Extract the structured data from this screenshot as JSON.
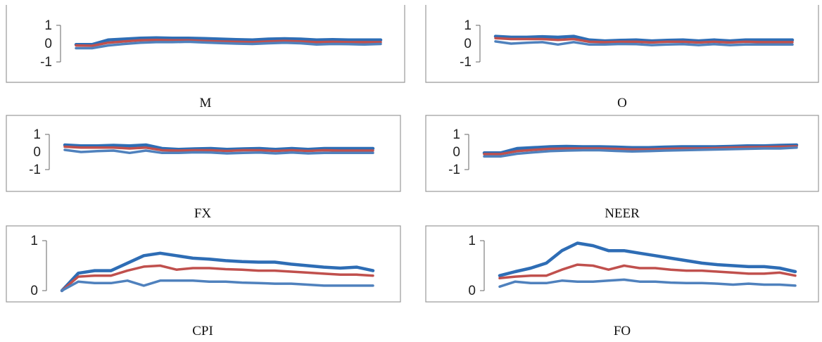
{
  "colors": {
    "upper": "#2e6db5",
    "median": "#c0504d",
    "lower": "#4f81bd",
    "frame": "#999999"
  },
  "chart_data": [
    {
      "type": "line",
      "caption": "M",
      "yticks": [
        "1",
        "0",
        "-1"
      ],
      "ylim": [
        -1,
        1
      ],
      "x": [
        1,
        2,
        3,
        4,
        5,
        6,
        7,
        8,
        9,
        10,
        11,
        12,
        13,
        14,
        15,
        16,
        17,
        18,
        19,
        20
      ],
      "series": [
        {
          "role": "upper",
          "values": [
            -0.05,
            -0.05,
            0.2,
            0.25,
            0.3,
            0.32,
            0.3,
            0.3,
            0.28,
            0.25,
            0.22,
            0.2,
            0.25,
            0.27,
            0.25,
            0.2,
            0.22,
            0.2,
            0.2,
            0.2
          ]
        },
        {
          "role": "median",
          "values": [
            -0.1,
            -0.12,
            0.05,
            0.12,
            0.18,
            0.2,
            0.18,
            0.18,
            0.15,
            0.12,
            0.1,
            0.08,
            0.12,
            0.15,
            0.12,
            0.08,
            0.1,
            0.08,
            0.08,
            0.08
          ]
        },
        {
          "role": "lower",
          "values": [
            -0.25,
            -0.25,
            -0.1,
            -0.02,
            0.05,
            0.08,
            0.08,
            0.1,
            0.06,
            0.03,
            0.0,
            -0.02,
            0.02,
            0.05,
            0.02,
            -0.05,
            -0.02,
            -0.03,
            -0.05,
            -0.02
          ]
        }
      ]
    },
    {
      "type": "line",
      "caption": "O",
      "yticks": [
        "1",
        "0",
        "-1"
      ],
      "ylim": [
        -1,
        1
      ],
      "x": [
        1,
        2,
        3,
        4,
        5,
        6,
        7,
        8,
        9,
        10,
        11,
        12,
        13,
        14,
        15,
        16,
        17,
        18,
        19,
        20
      ],
      "series": [
        {
          "role": "upper",
          "values": [
            0.4,
            0.35,
            0.35,
            0.38,
            0.35,
            0.4,
            0.2,
            0.15,
            0.18,
            0.2,
            0.15,
            0.18,
            0.2,
            0.15,
            0.2,
            0.15,
            0.2,
            0.2,
            0.2,
            0.2
          ]
        },
        {
          "role": "median",
          "values": [
            0.3,
            0.25,
            0.25,
            0.25,
            0.2,
            0.25,
            0.1,
            0.08,
            0.1,
            0.1,
            0.06,
            0.1,
            0.1,
            0.06,
            0.1,
            0.06,
            0.1,
            0.08,
            0.08,
            0.08
          ]
        },
        {
          "role": "lower",
          "values": [
            0.12,
            0.0,
            0.05,
            0.08,
            -0.05,
            0.08,
            -0.05,
            -0.05,
            -0.02,
            -0.03,
            -0.08,
            -0.05,
            -0.03,
            -0.08,
            -0.03,
            -0.08,
            -0.05,
            -0.05,
            -0.05,
            -0.05
          ]
        }
      ]
    },
    {
      "type": "line",
      "caption": "FX",
      "yticks": [
        "1",
        "0",
        "-1"
      ],
      "ylim": [
        -1,
        1
      ],
      "x": [
        1,
        2,
        3,
        4,
        5,
        6,
        7,
        8,
        9,
        10,
        11,
        12,
        13,
        14,
        15,
        16,
        17,
        18,
        19,
        20
      ],
      "series": [
        {
          "role": "upper",
          "values": [
            0.4,
            0.35,
            0.35,
            0.38,
            0.35,
            0.4,
            0.2,
            0.15,
            0.18,
            0.2,
            0.15,
            0.18,
            0.2,
            0.15,
            0.2,
            0.15,
            0.2,
            0.2,
            0.2,
            0.2
          ]
        },
        {
          "role": "median",
          "values": [
            0.3,
            0.25,
            0.25,
            0.25,
            0.2,
            0.25,
            0.1,
            0.08,
            0.1,
            0.1,
            0.06,
            0.1,
            0.1,
            0.06,
            0.1,
            0.06,
            0.1,
            0.08,
            0.08,
            0.08
          ]
        },
        {
          "role": "lower",
          "values": [
            0.12,
            0.0,
            0.05,
            0.08,
            -0.05,
            0.08,
            -0.05,
            -0.05,
            -0.02,
            -0.03,
            -0.08,
            -0.05,
            -0.03,
            -0.08,
            -0.03,
            -0.08,
            -0.05,
            -0.05,
            -0.05,
            -0.05
          ]
        }
      ]
    },
    {
      "type": "line",
      "caption": "NEER",
      "yticks": [
        "1",
        "0",
        "-1"
      ],
      "ylim": [
        -1,
        1
      ],
      "x": [
        1,
        2,
        3,
        4,
        5,
        6,
        7,
        8,
        9,
        10,
        11,
        12,
        13,
        14,
        15,
        16,
        17,
        18,
        19,
        20
      ],
      "series": [
        {
          "role": "upper",
          "values": [
            -0.05,
            -0.05,
            0.2,
            0.25,
            0.3,
            0.32,
            0.3,
            0.3,
            0.28,
            0.25,
            0.25,
            0.28,
            0.3,
            0.3,
            0.3,
            0.32,
            0.35,
            0.35,
            0.38,
            0.4
          ]
        },
        {
          "role": "median",
          "values": [
            -0.12,
            -0.12,
            0.05,
            0.12,
            0.18,
            0.2,
            0.2,
            0.2,
            0.18,
            0.15,
            0.15,
            0.18,
            0.2,
            0.2,
            0.22,
            0.25,
            0.27,
            0.28,
            0.3,
            0.32
          ]
        },
        {
          "role": "lower",
          "values": [
            -0.25,
            -0.25,
            -0.1,
            -0.02,
            0.05,
            0.08,
            0.1,
            0.1,
            0.06,
            0.03,
            0.05,
            0.08,
            0.1,
            0.12,
            0.14,
            0.16,
            0.18,
            0.2,
            0.2,
            0.25
          ]
        }
      ]
    },
    {
      "type": "line",
      "caption": "CPI",
      "yticks": [
        "1",
        "0"
      ],
      "ylim": [
        0,
        1
      ],
      "x": [
        1,
        2,
        3,
        4,
        5,
        6,
        7,
        8,
        9,
        10,
        11,
        12,
        13,
        14,
        15,
        16,
        17,
        18,
        19,
        20
      ],
      "series": [
        {
          "role": "upper",
          "values": [
            0.0,
            0.35,
            0.4,
            0.4,
            0.55,
            0.7,
            0.75,
            0.7,
            0.65,
            0.63,
            0.6,
            0.58,
            0.57,
            0.57,
            0.53,
            0.5,
            0.47,
            0.45,
            0.47,
            0.4
          ]
        },
        {
          "role": "median",
          "values": [
            0.0,
            0.28,
            0.3,
            0.3,
            0.4,
            0.48,
            0.5,
            0.42,
            0.45,
            0.45,
            0.43,
            0.42,
            0.4,
            0.4,
            0.38,
            0.36,
            0.34,
            0.32,
            0.32,
            0.3
          ]
        },
        {
          "role": "lower",
          "values": [
            0.0,
            0.18,
            0.15,
            0.15,
            0.2,
            0.1,
            0.2,
            0.2,
            0.2,
            0.18,
            0.18,
            0.16,
            0.15,
            0.14,
            0.14,
            0.12,
            0.1,
            0.1,
            0.1,
            0.1
          ]
        }
      ]
    },
    {
      "type": "line",
      "caption": "FO",
      "yticks": [
        "1",
        "0"
      ],
      "ylim": [
        0,
        1
      ],
      "x": [
        1,
        2,
        3,
        4,
        5,
        6,
        7,
        8,
        9,
        10,
        11,
        12,
        13,
        14,
        15,
        16,
        17,
        18,
        19,
        20
      ],
      "series": [
        {
          "role": "upper",
          "values": [
            0.3,
            0.38,
            0.45,
            0.55,
            0.8,
            0.95,
            0.9,
            0.8,
            0.8,
            0.75,
            0.7,
            0.65,
            0.6,
            0.55,
            0.52,
            0.5,
            0.48,
            0.48,
            0.45,
            0.38
          ]
        },
        {
          "role": "median",
          "values": [
            0.25,
            0.28,
            0.3,
            0.3,
            0.42,
            0.52,
            0.5,
            0.42,
            0.5,
            0.45,
            0.45,
            0.42,
            0.4,
            0.4,
            0.38,
            0.36,
            0.34,
            0.34,
            0.36,
            0.3
          ]
        },
        {
          "role": "lower",
          "values": [
            0.08,
            0.18,
            0.15,
            0.15,
            0.2,
            0.18,
            0.18,
            0.2,
            0.22,
            0.18,
            0.18,
            0.16,
            0.15,
            0.15,
            0.14,
            0.12,
            0.14,
            0.12,
            0.12,
            0.1
          ]
        }
      ]
    }
  ]
}
